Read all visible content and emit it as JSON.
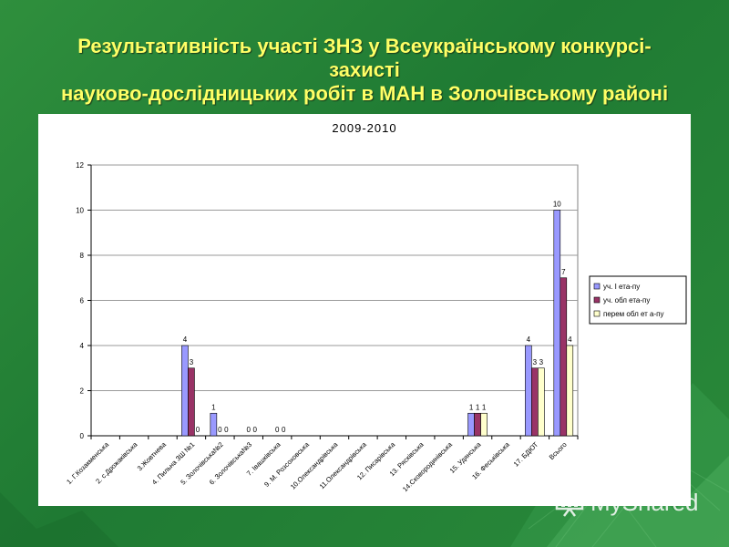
{
  "slide": {
    "title_lines": [
      "Результативність участі ЗНЗ у Всеукраїнському конкурсі-",
      "захисті",
      "науково-дослідницьких робіт в МАН в Золочівському районі"
    ],
    "background_color": "#2a8a3a",
    "title_color": "#ffff66"
  },
  "watermark": {
    "text": "MyShared",
    "icon": "presentation-board-icon"
  },
  "chart_data": {
    "type": "bar",
    "title": "2009-2010",
    "xlabel": "",
    "ylabel": "",
    "ylim": [
      0,
      12
    ],
    "yticks": [
      0,
      2,
      4,
      6,
      8,
      10,
      12
    ],
    "grid": true,
    "legend_position": "right",
    "categories": [
      "1. Г.Козакменська",
      "2. с.Дрожаківська",
      "3.Жовтнева",
      "4. Пильна ЗШ №1",
      "5. Золочівська№2",
      "6. Золочівська№3",
      "7. Івашківська",
      "9. М. Розсоховська",
      "10.Олександрівська",
      "11.Олександрівська",
      "12. Писарівська",
      "13. Рясківська",
      "14.Сковородинівська",
      "15. Удянська",
      "16. Феськівська",
      "17. БДЮТ",
      "Всього"
    ],
    "series": [
      {
        "name": "уч. І ета-пу",
        "color": "#9999ff",
        "values": [
          null,
          null,
          null,
          4,
          1,
          null,
          null,
          null,
          null,
          null,
          null,
          null,
          null,
          1,
          null,
          4,
          10
        ],
        "labels": [
          "",
          "",
          "",
          "4",
          "1",
          "",
          "",
          "",
          "",
          "",
          "",
          "",
          "",
          "1",
          "",
          "4",
          "10"
        ]
      },
      {
        "name": "уч. обл ета-пу",
        "color": "#993366",
        "values": [
          null,
          null,
          null,
          3,
          0,
          0,
          0,
          null,
          null,
          null,
          null,
          null,
          null,
          1,
          null,
          3,
          7
        ],
        "labels": [
          "",
          "",
          "",
          "3",
          "0",
          "0",
          "0",
          "",
          "",
          "",
          "",
          "",
          "",
          "1",
          "",
          "3",
          "7"
        ]
      },
      {
        "name": "перем обл ет а-пу",
        "color": "#ffffcc",
        "values": [
          null,
          null,
          null,
          0,
          0,
          0,
          0,
          null,
          null,
          null,
          null,
          null,
          null,
          1,
          null,
          3,
          4
        ],
        "labels": [
          "",
          "",
          "",
          "0",
          "0",
          "0",
          "0",
          "",
          "",
          "",
          "",
          "",
          "",
          "1",
          "",
          "3",
          "4"
        ]
      }
    ]
  }
}
